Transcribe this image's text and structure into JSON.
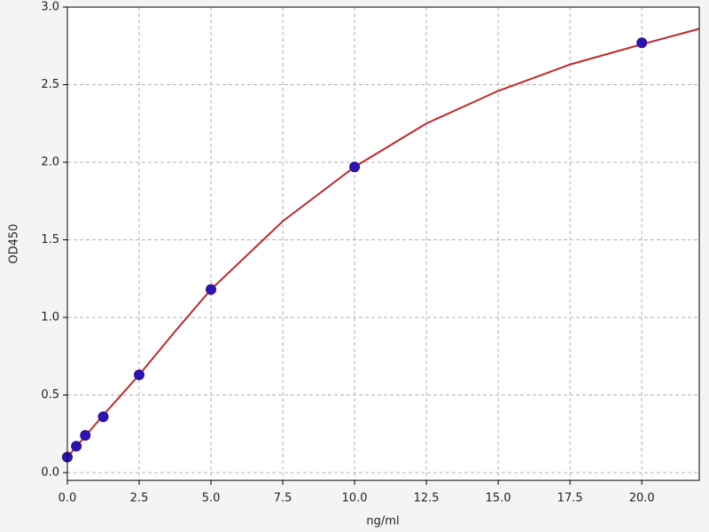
{
  "chart_data": {
    "type": "scatter",
    "xlabel": "ng/ml",
    "ylabel": "OD450",
    "xlim": [
      0,
      22
    ],
    "ylim": [
      -0.05,
      3.0
    ],
    "xticks": [
      {
        "value": 0,
        "label": "0.0"
      },
      2.5,
      {
        "value": 5,
        "label": "5.0"
      },
      7.5,
      {
        "value": 10,
        "label": "10.0"
      },
      12.5,
      {
        "value": 15,
        "label": "15.0"
      },
      17.5,
      {
        "value": 20,
        "label": "20.0"
      }
    ],
    "yticks": [
      {
        "value": 0,
        "label": "0.0"
      },
      0.5,
      {
        "value": 1,
        "label": "1.0"
      },
      1.5,
      {
        "value": 2,
        "label": "2.0"
      },
      2.5,
      {
        "value": 3,
        "label": "3.0"
      }
    ],
    "grid": true,
    "series": [
      {
        "kind": "line",
        "color": "#c0282a",
        "x": [
          0,
          1.25,
          2.5,
          3.75,
          5,
          7.5,
          10,
          12.5,
          15,
          17.5,
          20,
          22
        ],
        "values": [
          0.1,
          0.37,
          0.63,
          0.91,
          1.18,
          1.62,
          1.97,
          2.25,
          2.46,
          2.63,
          2.76,
          2.86
        ]
      },
      {
        "kind": "points",
        "color": "#2a13b8",
        "x": [
          0,
          0.3125,
          0.625,
          1.25,
          2.5,
          5,
          10,
          20
        ],
        "values": [
          0.1,
          0.17,
          0.24,
          0.36,
          0.63,
          1.18,
          1.97,
          2.77
        ]
      }
    ]
  }
}
